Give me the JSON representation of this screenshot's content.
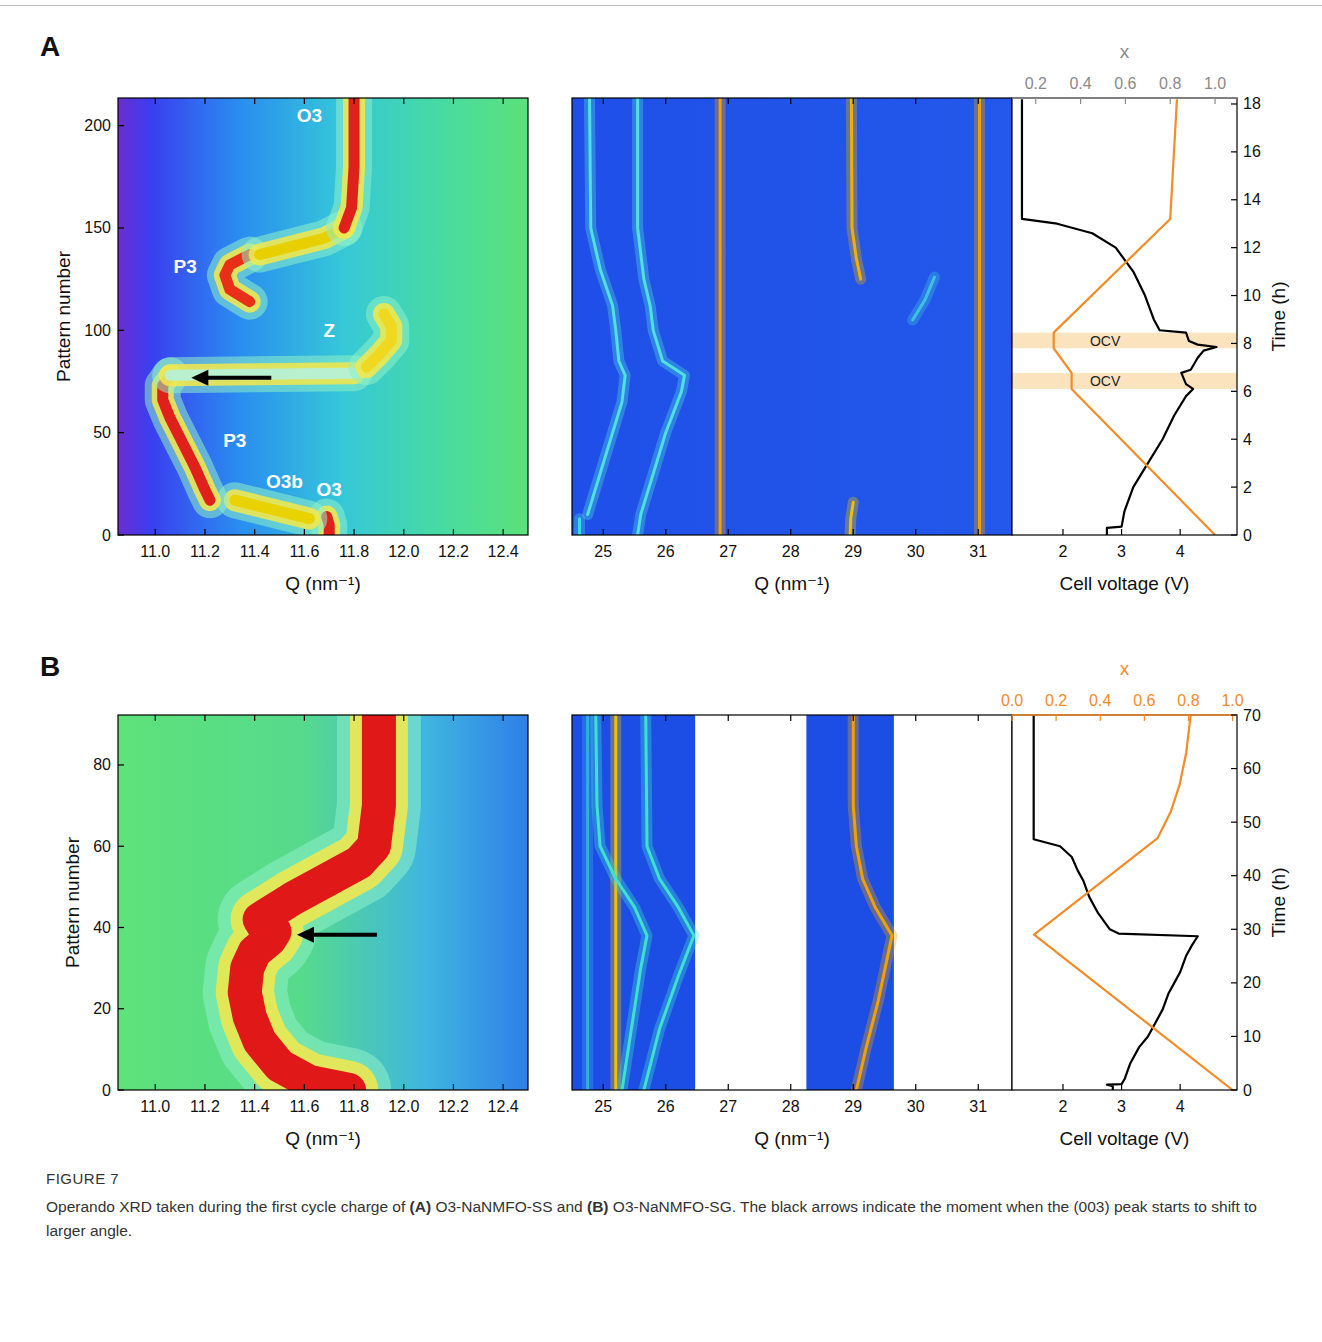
{
  "panel_labels": [
    "A",
    "B"
  ],
  "chart_data": [
    {
      "type": "heatmap",
      "x_label": "Q (nm⁻¹)",
      "y_label": "Pattern number",
      "xlim": [
        10.85,
        12.5
      ],
      "xticks": [
        {
          "value": 11,
          "label": "11.0"
        },
        11.2,
        11.4,
        11.6,
        11.8,
        {
          "value": 12,
          "label": "12.0"
        },
        12.2,
        12.4
      ],
      "ylim": [
        0,
        213.5
      ],
      "yticks": [
        0,
        50,
        100,
        150,
        200
      ],
      "series": [
        {
          "color": "#e0201b",
          "x": [
            11.7,
            11.7,
            11.69
          ],
          "values": [
            0,
            5,
            9
          ]
        },
        {
          "color": "#e8d200",
          "x": [
            11.62,
            11.52,
            11.42,
            11.32
          ],
          "values": [
            8,
            11,
            14,
            17
          ]
        },
        {
          "color": "#e0201b",
          "x": [
            11.22,
            11.2,
            11.16,
            11.11,
            11.06,
            11.03,
            11.03,
            11.06
          ],
          "values": [
            17,
            22,
            33,
            45,
            57,
            66,
            73,
            78
          ]
        },
        {
          "color": "#b8f0d0",
          "x": [
            11.06,
            11.4,
            11.8
          ],
          "values": [
            78,
            78.5,
            79
          ]
        },
        {
          "color": "#f0d820",
          "x": [
            11.85,
            11.9,
            11.95,
            11.95,
            11.92
          ],
          "values": [
            82,
            88,
            95,
            102,
            108
          ]
        },
        {
          "color": "#e83018",
          "x": [
            11.38,
            11.3,
            11.28,
            11.3,
            11.38
          ],
          "values": [
            114,
            120,
            127,
            132,
            137
          ]
        },
        {
          "color": "#e8d000",
          "x": [
            11.42,
            11.55,
            11.68,
            11.76
          ],
          "values": [
            137,
            141,
            145,
            150
          ]
        },
        {
          "color": "#e0201b",
          "x": [
            11.76,
            11.79,
            11.8,
            11.8
          ],
          "values": [
            150,
            160,
            180,
            213.5
          ]
        }
      ],
      "annotations": [
        {
          "text": "O3",
          "x": 11.62,
          "y": 205
        },
        {
          "text": "P3",
          "x": 11.12,
          "y": 131
        },
        {
          "text": "Z",
          "x": 11.7,
          "y": 100
        },
        {
          "text": "P3",
          "x": 11.32,
          "y": 46
        },
        {
          "text": "O3b",
          "x": 11.52,
          "y": 26
        },
        {
          "text": "O3",
          "x": 11.7,
          "y": 22
        }
      ],
      "arrow": {
        "x": 11.145,
        "y": 76.8
      }
    },
    {
      "type": "heatmap",
      "x_label": "Q (nm⁻¹)",
      "tick_labels": "x",
      "xlim": [
        24.5,
        31.54
      ],
      "xticks": [
        25,
        26,
        27,
        28,
        29,
        30,
        31
      ],
      "ylim": [
        0,
        213.5
      ],
      "series": [
        {
          "color": "#40d8e0",
          "x": [
            24.62,
            24.62
          ],
          "values": [
            0,
            8
          ]
        },
        {
          "color": "#50e0e0",
          "x": [
            24.75,
            24.9,
            25.1,
            25.3,
            25.35,
            25.25,
            25.2,
            25.15,
            24.95,
            24.8,
            24.78
          ],
          "values": [
            10,
            25,
            45,
            65,
            78,
            85,
            100,
            112,
            130,
            150,
            213.5
          ]
        },
        {
          "color": "#50e0e0",
          "x": [
            25.55,
            25.6,
            25.75,
            26.0,
            26.25,
            26.3,
            25.95,
            25.8,
            25.75,
            25.65,
            25.55,
            25.55
          ],
          "values": [
            0,
            10,
            25,
            50,
            70,
            78,
            85,
            100,
            112,
            125,
            150,
            213.5
          ]
        },
        {
          "color": "#f0a000",
          "x": [
            26.87,
            26.87
          ],
          "values": [
            0,
            213.5
          ]
        },
        {
          "color": "#f0c000",
          "x": [
            28.95,
            28.96,
            29.0
          ],
          "values": [
            0,
            8,
            16
          ]
        },
        {
          "color": "#f0b000",
          "x": [
            29.12,
            29.05,
            28.98,
            28.97
          ],
          "values": [
            125,
            135,
            150,
            213.5
          ]
        },
        {
          "color": "#40c0e0",
          "x": [
            29.95,
            30.15,
            30.3
          ],
          "values": [
            105,
            115,
            126
          ]
        },
        {
          "color": "#f0a000",
          "x": [
            31.02,
            31.02
          ],
          "values": [
            0,
            213.5
          ]
        }
      ]
    },
    {
      "type": "line",
      "x_label": "Cell voltage (V)",
      "x2_label": "x",
      "y_label": "Time (h)",
      "xlim": [
        1.13,
        4.97
      ],
      "xticks": [
        2,
        3,
        4
      ],
      "x2lim": [
        0.094,
        1.098
      ],
      "x2ticks": [
        0.2,
        0.4,
        0.6,
        0.8,
        {
          "value": 1,
          "label": "1.0"
        }
      ],
      "ylim": [
        0,
        18.25
      ],
      "yticks": [
        0,
        2,
        4,
        6,
        8,
        10,
        12,
        14,
        16,
        18
      ],
      "bands": [
        [
          6.1,
          6.77
        ],
        [
          7.8,
          8.45
        ]
      ],
      "annotations": [
        {
          "text": "OCV",
          "x": 2.72,
          "y": 8.12
        },
        {
          "text": "OCV",
          "x": 2.72,
          "y": 6.43
        }
      ],
      "series": [
        {
          "color": "#000000",
          "x": [
            2.75,
            2.75,
            3.0,
            3.05,
            3.2,
            3.45,
            3.7,
            3.9,
            4.1,
            4.22,
            4.1,
            4.02,
            4.18,
            4.3,
            4.4,
            4.62,
            4.3,
            4.15,
            4.1,
            3.65,
            3.55,
            3.4,
            3.2,
            2.9,
            2.5,
            1.9,
            1.3,
            1.3
          ],
          "values": [
            0,
            0.3,
            0.35,
            1,
            2,
            3,
            4,
            5,
            5.8,
            6.1,
            6.3,
            6.77,
            6.9,
            7.4,
            7.7,
            7.85,
            7.95,
            8.1,
            8.45,
            8.55,
            9,
            10,
            11,
            12,
            12.6,
            13.0,
            13.2,
            18.2
          ]
        },
        {
          "color": "#f28c28",
          "axis": "x2",
          "x": [
            1.0,
            0.36,
            0.36,
            0.28,
            0.28,
            0.8,
            0.83
          ],
          "values": [
            0,
            6.1,
            6.77,
            7.8,
            8.45,
            13.2,
            18.2
          ]
        }
      ]
    },
    {
      "type": "heatmap",
      "x_label": "Q (nm⁻¹)",
      "y_label": "Pattern number",
      "xlim": [
        10.85,
        12.5
      ],
      "xticks": [
        {
          "value": 11,
          "label": "11.0"
        },
        11.2,
        11.4,
        11.6,
        11.8,
        {
          "value": 12,
          "label": "12.0"
        },
        12.2,
        12.4
      ],
      "ylim": [
        0,
        92.3
      ],
      "yticks": [
        0,
        20,
        40,
        60,
        80
      ],
      "series": [
        {
          "color": "#e01818",
          "x": [
            11.78,
            11.62,
            11.5,
            11.42,
            11.38,
            11.36,
            11.37,
            11.4,
            11.46,
            11.48,
            11.44,
            11.42,
            11.55,
            11.7,
            11.82,
            11.88,
            11.9,
            11.9
          ],
          "values": [
            0,
            2,
            6,
            12,
            18,
            24,
            30,
            34,
            37,
            39,
            40,
            42,
            47,
            52,
            56,
            60,
            70,
            92.3
          ]
        }
      ],
      "arrow": {
        "x": 11.57,
        "y": 38.2
      }
    },
    {
      "type": "heatmap",
      "x_label": "Q (nm⁻¹)",
      "tick_labels": "x",
      "xlim": [
        24.5,
        31.54
      ],
      "xticks": [
        25,
        26,
        27,
        28,
        29,
        30,
        31
      ],
      "ylim": [
        0,
        92.3
      ],
      "q_ranges": [
        [
          24.5,
          26.47
        ],
        [
          28.25,
          29.65
        ]
      ],
      "series": [
        {
          "color": "#30b0e0",
          "x": [
            24.75,
            24.75
          ],
          "values": [
            0,
            92.3
          ]
        },
        {
          "color": "#f0c000",
          "x": [
            25.2,
            25.2
          ],
          "values": [
            0,
            92.3
          ]
        },
        {
          "color": "#40e0d0",
          "x": [
            25.3,
            25.45,
            25.6,
            25.7,
            25.5,
            25.2,
            24.95,
            24.9,
            24.88
          ],
          "values": [
            0,
            15,
            30,
            38,
            45,
            52,
            60,
            70,
            92.3
          ]
        },
        {
          "color": "#40e0d0",
          "x": [
            25.65,
            25.9,
            26.2,
            26.45,
            26.2,
            25.9,
            25.7,
            25.68
          ],
          "values": [
            0,
            15,
            28,
            38,
            45,
            52,
            60,
            92.3
          ]
        },
        {
          "color": "#f0a000",
          "x": [
            29.05,
            29.2,
            29.4,
            29.62,
            29.35,
            29.15,
            29.05,
            29.0,
            29.0
          ],
          "values": [
            0,
            10,
            22,
            38,
            45,
            52,
            60,
            70,
            92.3
          ]
        }
      ]
    },
    {
      "type": "line",
      "x_label": "Cell voltage (V)",
      "x2_label": "x",
      "y_label": "Time (h)",
      "xlim": [
        1.13,
        4.97
      ],
      "xticks": [
        2,
        3,
        4
      ],
      "x2lim": [
        0,
        1.02
      ],
      "x2ticks": [
        {
          "value": 0,
          "label": "0.0"
        },
        0.2,
        0.4,
        0.6,
        0.8,
        {
          "value": 1,
          "label": "1.0"
        }
      ],
      "ylim": [
        0,
        70
      ],
      "yticks": [
        0,
        10,
        20,
        30,
        40,
        50,
        60,
        70
      ],
      "series": [
        {
          "color": "#000000",
          "x": [
            2.85,
            2.85,
            2.75,
            3.0,
            3.05,
            3.15,
            3.3,
            3.45,
            3.6,
            3.7,
            3.8,
            3.9,
            4.0,
            4.1,
            4.2,
            4.3,
            2.95,
            2.8,
            2.6,
            2.45,
            2.35,
            2.25,
            2.15,
            1.95,
            1.5,
            1.5
          ],
          "values": [
            0,
            0.7,
            1.0,
            1.1,
            2,
            5,
            8,
            10,
            13,
            15,
            18,
            20,
            22,
            25,
            27,
            28.7,
            29.2,
            30,
            33,
            36,
            39,
            41,
            43.5,
            45.5,
            46.8,
            70
          ]
        },
        {
          "color": "#f28c28",
          "axis": "x2",
          "x": [
            1.0,
            0.1,
            0.66,
            0.72,
            0.76,
            0.79,
            0.81
          ],
          "values": [
            0,
            29,
            47,
            52,
            57,
            63,
            70
          ]
        }
      ]
    }
  ],
  "figure": {
    "label": "FIGURE 7",
    "caption": [
      "Operando XRD taken during the first cycle charge of ",
      "(A)",
      " O3-NaNMFO-SS and ",
      "(B)",
      " O3-NaNMFO-SG. The black arrows indicate the moment when the (003) peak starts to shift to larger angle."
    ]
  }
}
